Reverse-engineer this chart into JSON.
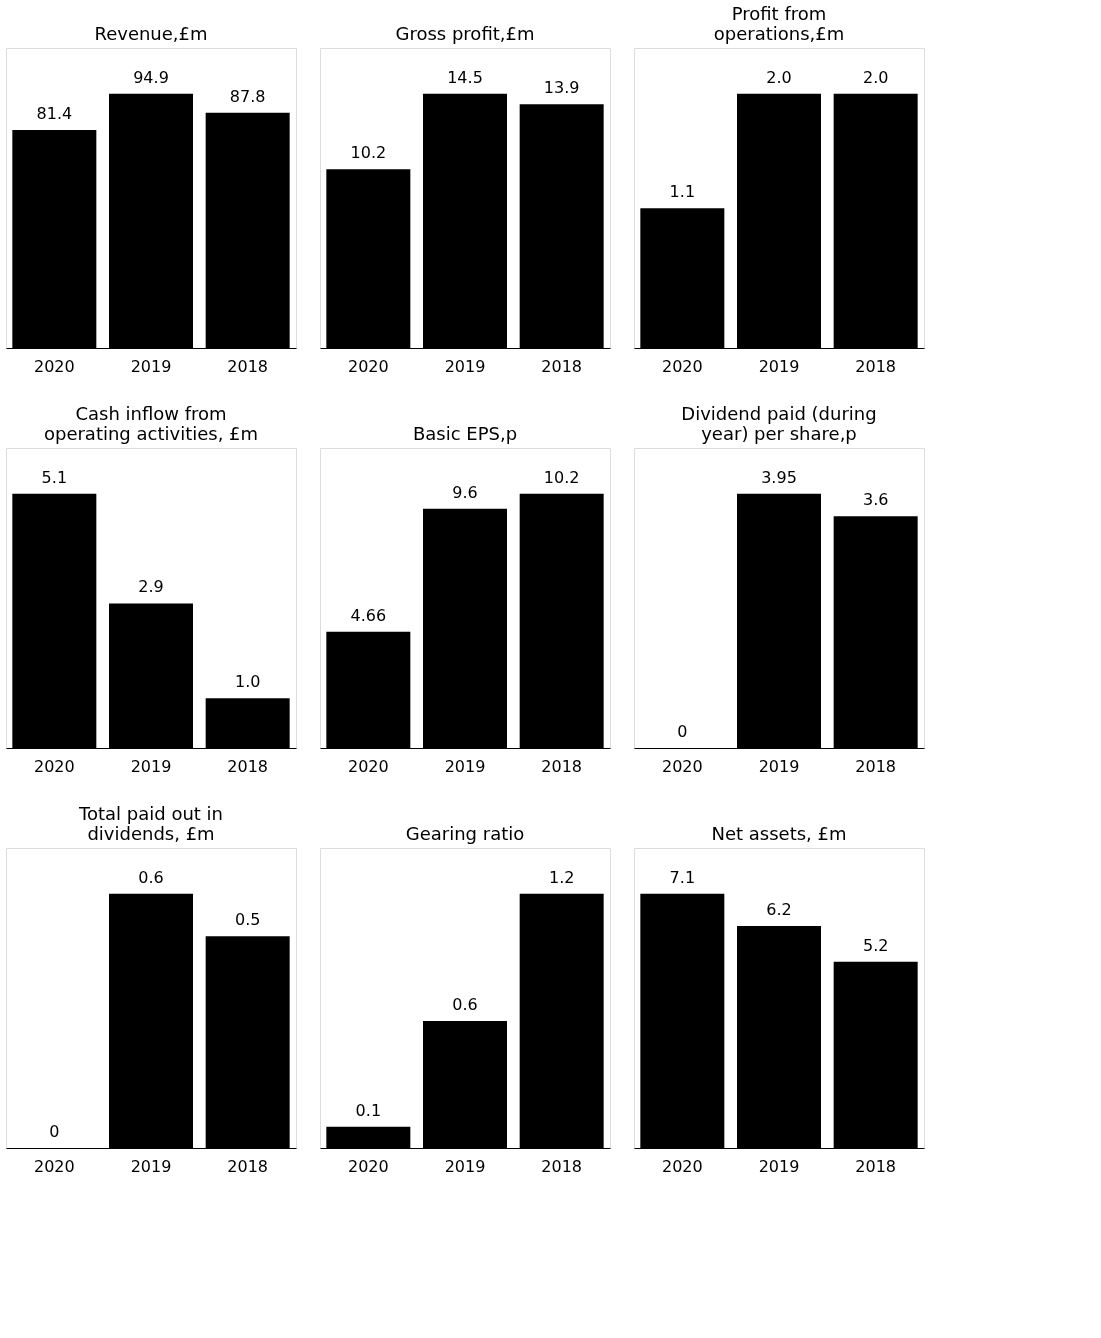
{
  "chart_data": [
    {
      "type": "bar",
      "title": "Revenue,£m",
      "categories": [
        "2020",
        "2019",
        "2018"
      ],
      "values": [
        81.4,
        94.9,
        87.8
      ],
      "color": "#000000",
      "data_labels": true,
      "grid": false
    },
    {
      "type": "bar",
      "title": "Gross profit,£m",
      "categories": [
        "2020",
        "2019",
        "2018"
      ],
      "values": [
        10.2,
        14.5,
        13.9
      ],
      "color": "#000000",
      "data_labels": true,
      "grid": false
    },
    {
      "type": "bar",
      "title": "Profit from\noperations,£m",
      "categories": [
        "2020",
        "2019",
        "2018"
      ],
      "values": [
        1.1,
        2,
        2
      ],
      "value_labels": [
        "1.1",
        "2.0",
        "2.0"
      ],
      "color": "#000000",
      "grid": false
    },
    {
      "type": "bar",
      "title": "Cash inflow from\noperating activities, £m",
      "categories": [
        "2020",
        "2019",
        "2018"
      ],
      "values": [
        5.1,
        2.9,
        1
      ],
      "value_labels": [
        "5.1",
        "2.9",
        "1.0"
      ],
      "color": "#000000",
      "grid": false
    },
    {
      "type": "bar",
      "title": "Basic EPS,p",
      "categories": [
        "2020",
        "2019",
        "2018"
      ],
      "values": [
        4.66,
        9.6,
        10.2
      ],
      "color": "#000000",
      "data_labels": true,
      "grid": false
    },
    {
      "type": "bar",
      "title": "Dividend paid (during\nyear) per share,p",
      "categories": [
        "2020",
        "2019",
        "2018"
      ],
      "values": [
        0,
        3.95,
        3.6
      ],
      "color": "#000000",
      "data_labels": true,
      "grid": false
    },
    {
      "type": "bar",
      "title": "Total paid out in\ndividends, £m",
      "categories": [
        "2020",
        "2019",
        "2018"
      ],
      "values": [
        0,
        0.6,
        0.5
      ],
      "color": "#000000",
      "data_labels": true,
      "grid": false
    },
    {
      "type": "bar",
      "title": "Gearing ratio",
      "categories": [
        "2020",
        "2019",
        "2018"
      ],
      "values": [
        0.1,
        0.6,
        1.2
      ],
      "color": "#000000",
      "data_labels": true,
      "grid": false
    },
    {
      "type": "bar",
      "title": "Net assets, £m",
      "categories": [
        "2020",
        "2019",
        "2018"
      ],
      "values": [
        7.1,
        6.2,
        5.2
      ],
      "color": "#000000",
      "data_labels": true,
      "grid": false
    }
  ]
}
